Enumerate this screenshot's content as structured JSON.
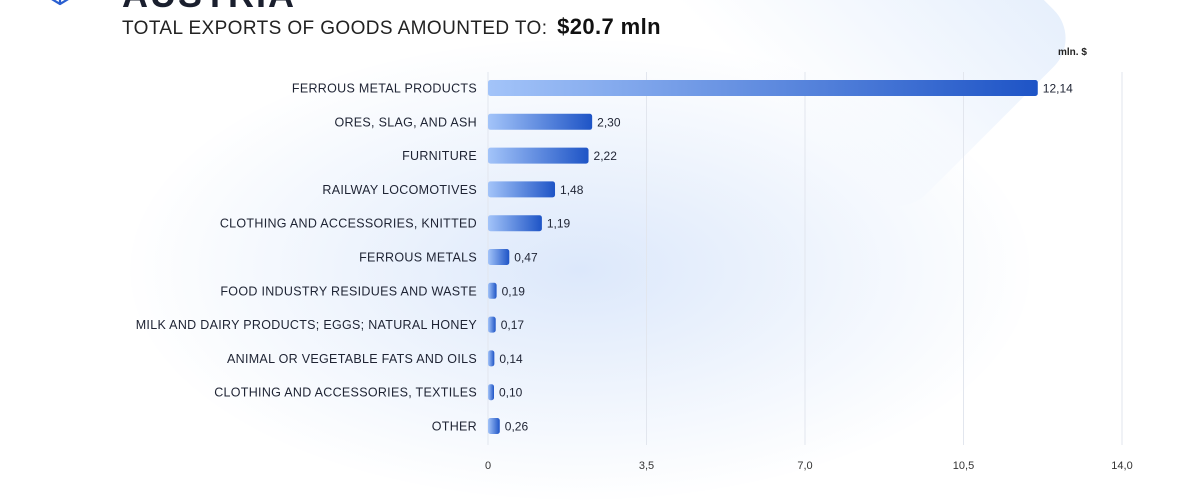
{
  "header": {
    "country": "AUSTRIA",
    "headline": "TOTAL EXPORTS OF GOODS AMOUNTED TO:",
    "total": "$20.7 mln"
  },
  "icons": {
    "logo": "cube-icon"
  },
  "colors": {
    "bar_start": "#a3c4f9",
    "bar_end": "#1e54c6",
    "grid": "#e2e6ee"
  },
  "chart_data": {
    "type": "bar",
    "orientation": "horizontal",
    "unit": "mln. $",
    "categories": [
      "FERROUS METAL PRODUCTS",
      "ORES, SLAG, AND ASH",
      "FURNITURE",
      "RAILWAY LOCOMOTIVES",
      "CLOTHING AND ACCESSORIES, KNITTED",
      "FERROUS METALS",
      "FOOD INDUSTRY RESIDUES AND WASTE",
      "MILK AND DAIRY PRODUCTS; EGGS; NATURAL HONEY",
      "ANIMAL OR VEGETABLE FATS AND OILS",
      "CLOTHING AND ACCESSORIES, TEXTILES",
      "OTHER"
    ],
    "values": [
      12.14,
      2.3,
      2.22,
      1.48,
      1.19,
      0.47,
      0.19,
      0.17,
      0.14,
      0.1,
      0.26
    ],
    "value_labels": [
      "12,14",
      "2,30",
      "2,22",
      "1,48",
      "1,19",
      "0,47",
      "0,19",
      "0,17",
      "0,14",
      "0,10",
      "0,26"
    ],
    "xlim": [
      0,
      14
    ],
    "xticks": [
      0,
      3.5,
      7,
      10.5,
      14
    ],
    "xtick_labels": [
      "0",
      "3,5",
      "7,0",
      "10,5",
      "14,0"
    ],
    "grid": true,
    "legend": "none"
  }
}
